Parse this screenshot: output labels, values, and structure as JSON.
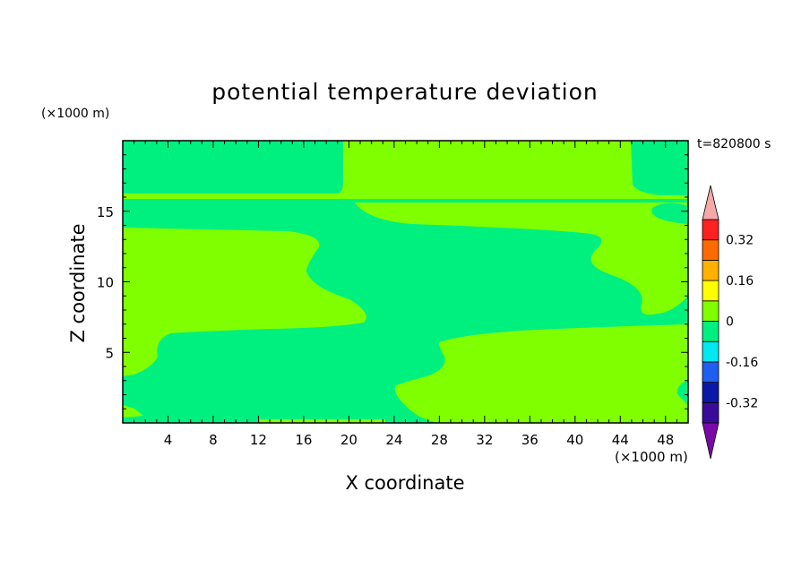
{
  "chart_data": {
    "type": "heatmap",
    "title": "potential temperature deviation",
    "xlabel": "X coordinate",
    "ylabel": "Z coordinate",
    "x_unit": "(×1000 m)",
    "y_unit": "(×1000 m)",
    "time_label": "t=820800 s",
    "xlim": [
      0,
      50
    ],
    "ylim": [
      0,
      20
    ],
    "x_ticks": [
      4,
      8,
      12,
      16,
      20,
      24,
      28,
      32,
      36,
      40,
      44,
      48
    ],
    "y_ticks": [
      5,
      10,
      15
    ],
    "colorbar": {
      "levels": [
        -0.4,
        -0.32,
        -0.24,
        -0.16,
        -0.08,
        0,
        0.08,
        0.16,
        0.24,
        0.32,
        0.4
      ],
      "colors": [
        "#3a0b9a",
        "#0a18a8",
        "#1e5ff0",
        "#00e8f0",
        "#00f080",
        "#80ff00",
        "#ffff00",
        "#ffb000",
        "#ff6a00",
        "#ff2020"
      ],
      "under_color": "#7a0aa8",
      "over_color": "#f4a8a8",
      "tick_labels": [
        "-0.32",
        "-0.16",
        "0",
        "0.16",
        "0.32"
      ],
      "tick_values": [
        -0.32,
        -0.16,
        0,
        0.16,
        0.32
      ]
    },
    "field_colors": {
      "negative": "#00f080",
      "positive": "#80ff00"
    }
  }
}
